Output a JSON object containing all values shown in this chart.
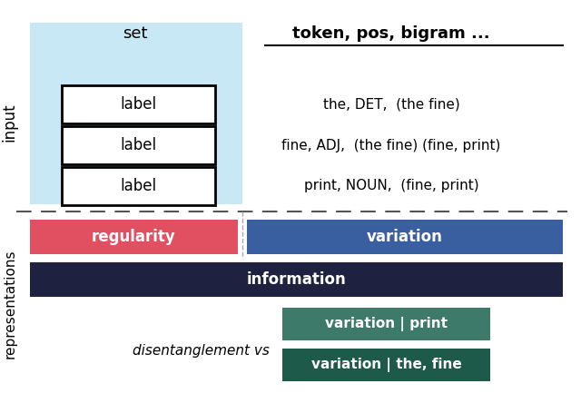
{
  "bg_color": "#ffffff",
  "light_blue_bg": "#c8e8f5",
  "fig_width": 6.4,
  "fig_height": 4.55,
  "set_label": "set",
  "token_label": "token, pos, bigram ...",
  "label_boxes": [
    "label",
    "label",
    "label"
  ],
  "row_texts": [
    "the, DET,  (the fine)",
    "fine, ADJ,  (the fine) (fine, print)",
    "print, NOUN,  (fine, print)"
  ],
  "input_ylabel": "input",
  "representations_ylabel": "representations",
  "regularity_color": "#e05060",
  "variation_color": "#3a5fa0",
  "information_color": "#1e2240",
  "variation_print_color": "#3d7a6a",
  "variation_fine_color": "#1d5a4a",
  "regularity_label": "regularity",
  "variation_label": "variation",
  "information_label": "information",
  "variation_print_label": "variation | print",
  "variation_fine_label": "variation | the, fine",
  "disentanglement_label": "disentanglement vs"
}
